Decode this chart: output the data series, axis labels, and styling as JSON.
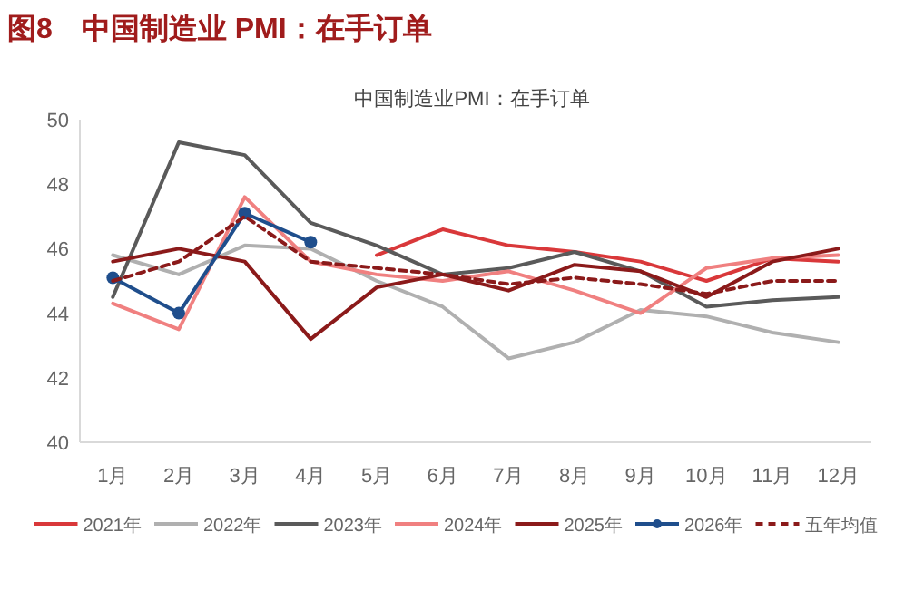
{
  "chart_data": {
    "type": "line",
    "title": "图8　中国制造业 PMI：在手订单",
    "subtitle": "中国制造业PMI：在手订单",
    "categories": [
      "1月",
      "2月",
      "3月",
      "4月",
      "5月",
      "6月",
      "7月",
      "8月",
      "9月",
      "10月",
      "11月",
      "12月"
    ],
    "series": [
      {
        "name": "2021年",
        "color": "#d9383a",
        "values": [
          null,
          null,
          null,
          null,
          45.8,
          46.6,
          46.1,
          45.9,
          45.6,
          45.0,
          45.7,
          45.6
        ]
      },
      {
        "name": "2022年",
        "color": "#b0b0b0",
        "values": [
          45.8,
          45.2,
          46.1,
          46.0,
          45.0,
          44.2,
          42.6,
          43.1,
          44.1,
          43.9,
          43.4,
          43.1
        ]
      },
      {
        "name": "2023年",
        "color": "#5a5a5a",
        "values": [
          44.5,
          49.3,
          48.9,
          46.8,
          46.1,
          45.2,
          45.4,
          45.9,
          45.3,
          44.2,
          44.4,
          44.5
        ]
      },
      {
        "name": "2024年",
        "color": "#f08080",
        "values": [
          44.3,
          43.5,
          47.6,
          45.6,
          45.2,
          45.0,
          45.3,
          44.7,
          44.0,
          45.4,
          45.7,
          45.8
        ]
      },
      {
        "name": "2025年",
        "color": "#8b1a1a",
        "values": [
          45.6,
          46.0,
          45.6,
          43.2,
          44.8,
          45.2,
          44.7,
          45.5,
          45.3,
          44.5,
          45.6,
          46.0
        ]
      },
      {
        "name": "2026年",
        "color": "#1f4e8c",
        "marker": "circle",
        "values": [
          45.1,
          44.0,
          47.1,
          46.2,
          null,
          null,
          null,
          null,
          null,
          null,
          null,
          null
        ]
      },
      {
        "name": "五年均值",
        "color": "#8b1a1a",
        "line_style": "dashed",
        "values": [
          45.0,
          45.6,
          47.0,
          45.6,
          45.4,
          45.2,
          44.9,
          45.1,
          44.9,
          44.6,
          45.0,
          45.0
        ]
      }
    ],
    "ylim": [
      40,
      50
    ],
    "yticks": [
      40,
      42,
      44,
      46,
      48,
      50
    ],
    "grid": false,
    "legend": "bottom"
  }
}
